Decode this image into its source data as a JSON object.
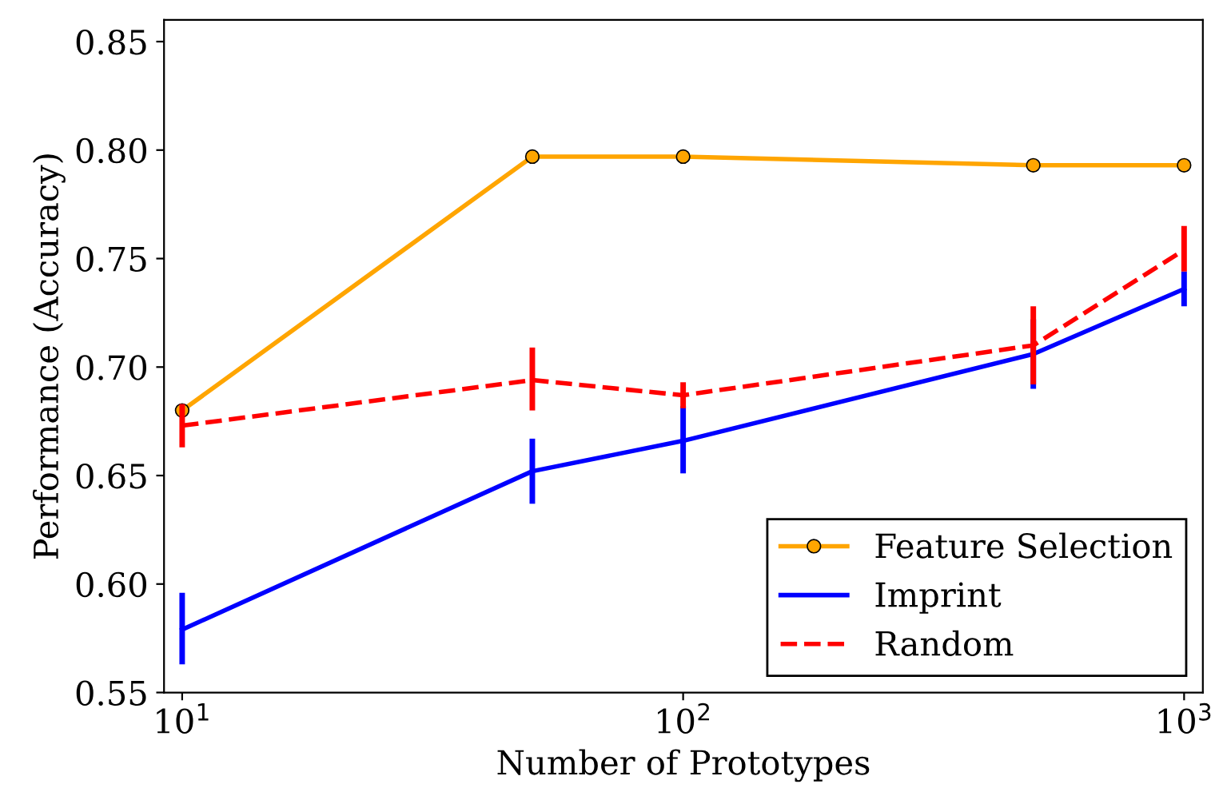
{
  "chart_data": {
    "type": "line",
    "xlabel": "Number of Prototypes",
    "ylabel": "Performance (Accuracy)",
    "log": "x",
    "xlim": [
      9.2,
      1090
    ],
    "ylim": [
      0.55,
      0.86
    ],
    "xticks": [
      {
        "value": 10,
        "label": "10$^{1}$"
      },
      {
        "value": 100,
        "label": "10$^{2}$"
      },
      {
        "value": 1000,
        "label": "10$^{3}$"
      }
    ],
    "yticks": [
      {
        "value": 0.55,
        "label": "0.55"
      },
      {
        "value": 0.6,
        "label": "0.60"
      },
      {
        "value": 0.65,
        "label": "0.65"
      },
      {
        "value": 0.7,
        "label": "0.70"
      },
      {
        "value": 0.75,
        "label": "0.75"
      },
      {
        "value": 0.8,
        "label": "0.80"
      },
      {
        "value": 0.85,
        "label": "0.85"
      }
    ],
    "grid": false,
    "legend": "bottom right",
    "series": [
      {
        "name": "Feature Selection",
        "color": "#ffa500",
        "marker": "circle",
        "line_style": "solid",
        "x": [
          10,
          50,
          100,
          500,
          1000
        ],
        "values": [
          0.68,
          0.797,
          0.797,
          0.793,
          0.793
        ]
      },
      {
        "name": "Imprint",
        "color": "#0000ff",
        "marker": "none",
        "line_style": "solid",
        "x": [
          10,
          50,
          100,
          500,
          1000
        ],
        "values": [
          0.579,
          0.652,
          0.666,
          0.706,
          0.736
        ],
        "errors": [
          [
            0.563,
            0.596
          ],
          [
            0.637,
            0.667
          ],
          [
            0.651,
            0.682
          ],
          [
            0.69,
            0.722
          ],
          [
            0.728,
            0.744
          ]
        ]
      },
      {
        "name": "Random",
        "color": "#ff0000",
        "marker": "none",
        "line_style": "dashed",
        "x": [
          10,
          50,
          100,
          500,
          1000
        ],
        "values": [
          0.673,
          0.694,
          0.687,
          0.71,
          0.754
        ],
        "errors": [
          [
            0.663,
            0.683
          ],
          [
            0.68,
            0.709
          ],
          [
            0.681,
            0.693
          ],
          [
            0.692,
            0.728
          ],
          [
            0.744,
            0.765
          ]
        ]
      }
    ]
  }
}
